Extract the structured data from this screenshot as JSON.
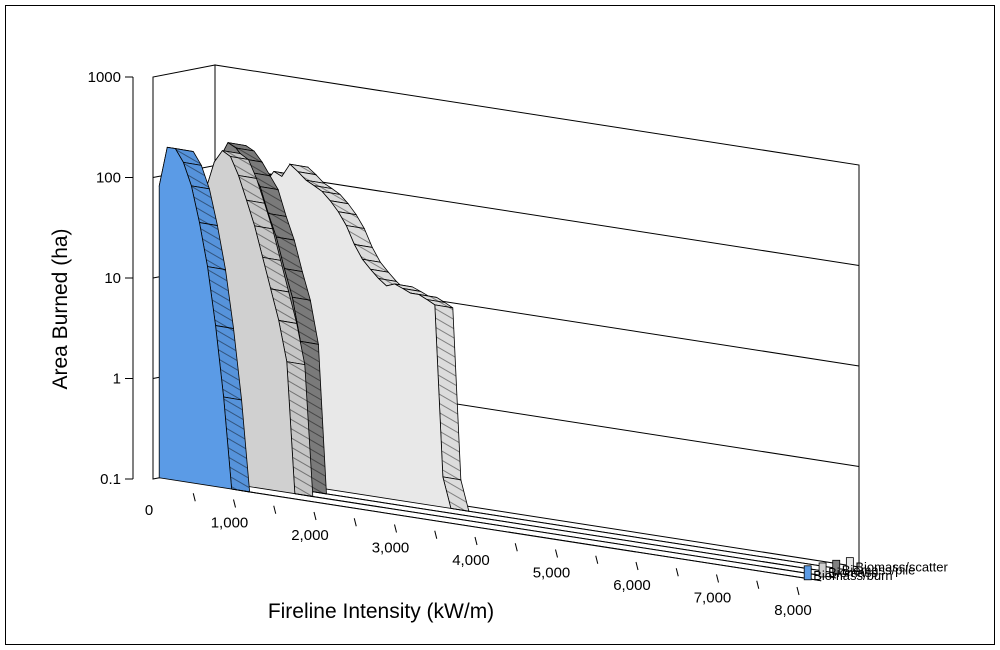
{
  "chart_data": {
    "type": "area",
    "title": "",
    "xlabel": "Fireline Intensity (kW/m)",
    "ylabel": "Area Burned (ha)",
    "y_scale": "log",
    "ylim": [
      0.1,
      1000
    ],
    "xlim": [
      0,
      8000
    ],
    "x_ticks": [
      "0",
      "1,000",
      "2,000",
      "3,000",
      "4,000",
      "5,000",
      "6,000",
      "7,000",
      "8,000"
    ],
    "y_ticks": [
      "0.1",
      "1",
      "10",
      "100",
      "1000"
    ],
    "grid": true,
    "legend": "series labels at right end of each depth row",
    "series": [
      {
        "name": "Biomass/burn",
        "color": "#5B9BE6",
        "x": [
          0,
          100,
          200,
          300,
          400,
          500,
          600,
          700,
          800,
          900,
          1000,
          8000
        ],
        "values": [
          80,
          200,
          200,
          150,
          90,
          40,
          15,
          4,
          0.8,
          0.1,
          0.1,
          0.1
        ]
      },
      {
        "name": "Biomass",
        "color": "#D0D0D0",
        "x": [
          0,
          100,
          200,
          300,
          400,
          500,
          600,
          700,
          800,
          900,
          1000,
          1100,
          1200,
          1300,
          1400,
          1500,
          8000
        ],
        "values": [
          0.1,
          0.1,
          0.1,
          50,
          80,
          150,
          200,
          180,
          120,
          70,
          40,
          20,
          10,
          5,
          2,
          0.1,
          0.1
        ]
      },
      {
        "name": "Biomass/pile",
        "color": "#808080",
        "x": [
          0,
          100,
          200,
          300,
          400,
          500,
          600,
          700,
          800,
          900,
          1000,
          1100,
          1200,
          1300,
          1400,
          1500,
          8000
        ],
        "values": [
          0.1,
          0.1,
          0.1,
          0.1,
          150,
          220,
          200,
          160,
          120,
          90,
          50,
          30,
          15,
          8,
          3,
          0.1,
          0.1
        ]
      },
      {
        "name": "Biomass/scatter",
        "color": "#E8E8E8",
        "x": [
          0,
          100,
          200,
          300,
          400,
          500,
          600,
          700,
          800,
          900,
          1000,
          1100,
          1200,
          1300,
          1400,
          1500,
          1600,
          1700,
          1800,
          1900,
          2000,
          2100,
          2200,
          2300,
          2400,
          2500,
          2600,
          2700,
          2800,
          2900,
          3000,
          3100,
          8000
        ],
        "values": [
          0.1,
          0.1,
          0.1,
          0.1,
          0.1,
          0.1,
          100,
          110,
          90,
          120,
          110,
          150,
          130,
          110,
          100,
          90,
          75,
          60,
          45,
          30,
          22,
          18,
          15,
          13,
          14,
          13,
          12,
          12,
          11,
          10,
          0.2,
          0.1,
          0.1
        ]
      }
    ]
  }
}
